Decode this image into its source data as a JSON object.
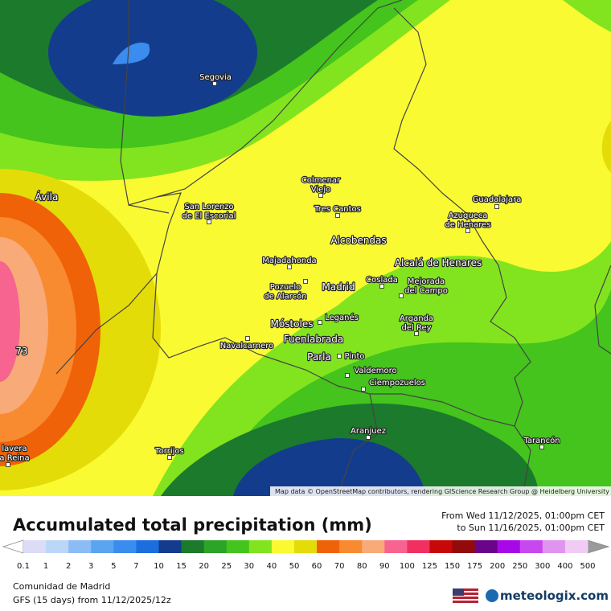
{
  "map": {
    "cities": [
      {
        "lines": [
          "Segovia"
        ]
      },
      {
        "lines": [
          "Ávila"
        ]
      },
      {
        "lines": [
          "Colmenar",
          "Viejo"
        ]
      },
      {
        "lines": [
          "San Lorenzo",
          "de El Escorial"
        ]
      },
      {
        "lines": [
          "Tres Cantos"
        ]
      },
      {
        "lines": [
          "Guadalajara"
        ]
      },
      {
        "lines": [
          "Azuqueca",
          "de Henares"
        ]
      },
      {
        "lines": [
          "Alcobendas"
        ]
      },
      {
        "lines": [
          "Majadahonda"
        ]
      },
      {
        "lines": [
          "Alcalá de Henares"
        ]
      },
      {
        "lines": [
          "Pozuelo",
          "de Alarcón"
        ]
      },
      {
        "lines": [
          "Madrid"
        ]
      },
      {
        "lines": [
          "Coslada"
        ]
      },
      {
        "lines": [
          "Mejorada",
          "del Campo"
        ]
      },
      {
        "lines": [
          "Móstoles"
        ]
      },
      {
        "lines": [
          "Leganés"
        ]
      },
      {
        "lines": [
          "Arganda",
          "del Rey"
        ]
      },
      {
        "lines": [
          "Fuenlabrada"
        ]
      },
      {
        "lines": [
          "Navalcarnero"
        ]
      },
      {
        "lines": [
          "Parla"
        ]
      },
      {
        "lines": [
          "Pinto"
        ]
      },
      {
        "lines": [
          "Valdemoro"
        ]
      },
      {
        "lines": [
          "Ciempozuelos"
        ]
      },
      {
        "lines": [
          "Aranjuez"
        ]
      },
      {
        "lines": [
          "Tarancón"
        ]
      },
      {
        "lines": [
          "Torrijos"
        ]
      },
      {
        "lines": [
          "lavera",
          "a Reina"
        ]
      }
    ],
    "max_label": "73",
    "attribution": "Map data © OpenStreetMap contributors, rendering GIScience Research Group @ Heidelberg University"
  },
  "legend": {
    "title": "Accumulated total precipitation (mm)",
    "from": "From Wed 11/12/2025, 01:00pm CET",
    "to": "to Sun 11/16/2025, 01:00pm CET",
    "labels": [
      0.1,
      1,
      2,
      3,
      5,
      7,
      10,
      15,
      20,
      25,
      30,
      40,
      50,
      60,
      70,
      80,
      90,
      100,
      125,
      150,
      175,
      200,
      250,
      300,
      400,
      500
    ],
    "colors": [
      "#dcdcf6",
      "#bcd6f8",
      "#8cbcf6",
      "#5aa4f0",
      "#3a8cee",
      "#1c6ede",
      "#143c8c",
      "#1c7a2c",
      "#2ca428",
      "#44c41c",
      "#82e41e",
      "#fafa32",
      "#e4dc08",
      "#f06208",
      "#f88a30",
      "#f8aa78",
      "#f86490",
      "#f03060",
      "#c80808",
      "#920a0a",
      "#6a0488",
      "#a808e8",
      "#c848f0",
      "#e094f0",
      "#f0ccf4"
    ],
    "low_color": "#ffffff",
    "high_color": "#9a9a9a"
  },
  "footer": {
    "region": "Comunidad de Madrid",
    "model": "GFS (15 days) from 11/12/2025/12z",
    "brand": "meteologix.com"
  }
}
